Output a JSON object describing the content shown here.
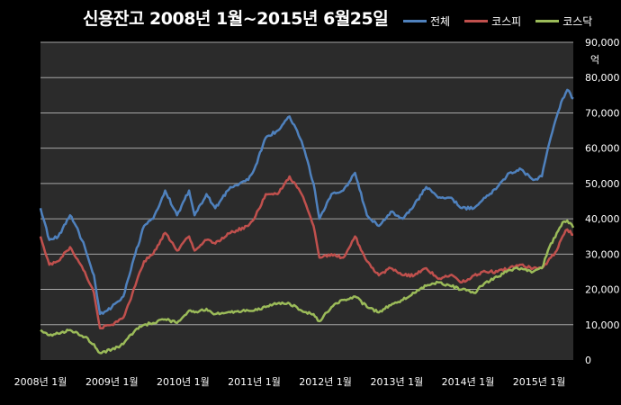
{
  "chart_data": {
    "type": "line",
    "title": "신용잔고 2008년 1월~2015년 6월25일",
    "ylabel": "억",
    "ylim": [
      0,
      90000
    ],
    "yticks": [
      0,
      10000,
      20000,
      30000,
      40000,
      50000,
      60000,
      70000,
      80000,
      90000
    ],
    "ytick_labels": [
      "0",
      "10,000",
      "20,000",
      "30,000",
      "40,000",
      "50,000",
      "60,000",
      "70,000",
      "80,000",
      "90,000"
    ],
    "xlim": [
      "2008-01-01",
      "2015-06-25"
    ],
    "xticks": [
      "2008-01-01",
      "2009-01-01",
      "2010-01-01",
      "2011-01-01",
      "2012-01-01",
      "2013-01-01",
      "2014-01-01",
      "2015-01-01"
    ],
    "xtick_labels": [
      "2008년 1월",
      "2009년 1월",
      "2010년 1월",
      "2011년 1월",
      "2012년 1월",
      "2013년 1월",
      "2014년 1월",
      "2015년 1월"
    ],
    "grid": true,
    "legend_position": "top-right",
    "series": [
      {
        "name": "전체",
        "color": "#4f81bd",
        "points": [
          [
            "2008-01-01",
            43000
          ],
          [
            "2008-02-15",
            34000
          ],
          [
            "2008-04-01",
            35000
          ],
          [
            "2008-06-01",
            41000
          ],
          [
            "2008-07-01",
            38000
          ],
          [
            "2008-08-15",
            32000
          ],
          [
            "2008-10-01",
            24000
          ],
          [
            "2008-11-01",
            13000
          ],
          [
            "2009-01-01",
            15000
          ],
          [
            "2009-03-01",
            18000
          ],
          [
            "2009-05-01",
            30000
          ],
          [
            "2009-06-15",
            38000
          ],
          [
            "2009-08-01",
            40000
          ],
          [
            "2009-10-01",
            48000
          ],
          [
            "2009-12-01",
            41000
          ],
          [
            "2010-02-01",
            48000
          ],
          [
            "2010-03-01",
            41000
          ],
          [
            "2010-05-01",
            47000
          ],
          [
            "2010-06-15",
            43000
          ],
          [
            "2010-09-01",
            49000
          ],
          [
            "2010-12-01",
            51000
          ],
          [
            "2011-01-01",
            54000
          ],
          [
            "2011-03-01",
            63000
          ],
          [
            "2011-05-01",
            65000
          ],
          [
            "2011-07-01",
            69000
          ],
          [
            "2011-09-01",
            62000
          ],
          [
            "2011-11-01",
            50000
          ],
          [
            "2011-12-01",
            40000
          ],
          [
            "2012-02-01",
            47000
          ],
          [
            "2012-04-01",
            48000
          ],
          [
            "2012-06-01",
            53000
          ],
          [
            "2012-08-01",
            41000
          ],
          [
            "2012-10-01",
            38000
          ],
          [
            "2012-12-01",
            42000
          ],
          [
            "2013-02-01",
            40000
          ],
          [
            "2013-04-01",
            44000
          ],
          [
            "2013-06-01",
            49000
          ],
          [
            "2013-08-01",
            46000
          ],
          [
            "2013-10-01",
            46000
          ],
          [
            "2013-12-01",
            43000
          ],
          [
            "2014-02-01",
            43000
          ],
          [
            "2014-04-01",
            46000
          ],
          [
            "2014-06-01",
            49000
          ],
          [
            "2014-08-01",
            53000
          ],
          [
            "2014-10-01",
            54000
          ],
          [
            "2014-12-01",
            51000
          ],
          [
            "2015-01-15",
            52000
          ],
          [
            "2015-02-15",
            60000
          ],
          [
            "2015-04-01",
            69000
          ],
          [
            "2015-05-01",
            74000
          ],
          [
            "2015-05-25",
            76500
          ],
          [
            "2015-06-25",
            74000
          ]
        ]
      },
      {
        "name": "코스피",
        "color": "#c0504d",
        "points": [
          [
            "2008-01-01",
            35000
          ],
          [
            "2008-02-15",
            27000
          ],
          [
            "2008-04-01",
            28000
          ],
          [
            "2008-06-01",
            32000
          ],
          [
            "2008-07-01",
            29000
          ],
          [
            "2008-08-15",
            25000
          ],
          [
            "2008-10-01",
            19000
          ],
          [
            "2008-11-01",
            9000
          ],
          [
            "2009-01-01",
            10000
          ],
          [
            "2009-03-01",
            12000
          ],
          [
            "2009-05-01",
            21000
          ],
          [
            "2009-06-15",
            28000
          ],
          [
            "2009-08-01",
            30000
          ],
          [
            "2009-10-01",
            36000
          ],
          [
            "2009-12-01",
            31000
          ],
          [
            "2010-02-01",
            35000
          ],
          [
            "2010-03-01",
            31000
          ],
          [
            "2010-05-01",
            34000
          ],
          [
            "2010-06-15",
            33000
          ],
          [
            "2010-09-01",
            36000
          ],
          [
            "2010-12-01",
            38000
          ],
          [
            "2011-01-01",
            40000
          ],
          [
            "2011-03-01",
            47000
          ],
          [
            "2011-05-01",
            47000
          ],
          [
            "2011-07-01",
            52000
          ],
          [
            "2011-09-01",
            47000
          ],
          [
            "2011-11-01",
            38000
          ],
          [
            "2011-12-01",
            29000
          ],
          [
            "2012-02-01",
            30000
          ],
          [
            "2012-04-01",
            29000
          ],
          [
            "2012-06-01",
            35000
          ],
          [
            "2012-08-01",
            28000
          ],
          [
            "2012-10-01",
            24000
          ],
          [
            "2012-12-01",
            26000
          ],
          [
            "2013-02-01",
            24000
          ],
          [
            "2013-04-01",
            24000
          ],
          [
            "2013-06-01",
            26000
          ],
          [
            "2013-08-01",
            23000
          ],
          [
            "2013-10-01",
            24000
          ],
          [
            "2013-12-01",
            22000
          ],
          [
            "2014-02-01",
            24000
          ],
          [
            "2014-04-01",
            25000
          ],
          [
            "2014-06-01",
            25000
          ],
          [
            "2014-08-01",
            26000
          ],
          [
            "2014-10-01",
            27000
          ],
          [
            "2014-12-01",
            26000
          ],
          [
            "2015-01-15",
            26000
          ],
          [
            "2015-02-15",
            28000
          ],
          [
            "2015-04-01",
            31000
          ],
          [
            "2015-05-01",
            35000
          ],
          [
            "2015-05-25",
            37000
          ],
          [
            "2015-06-25",
            35500
          ]
        ]
      },
      {
        "name": "코스닥",
        "color": "#9bbb59",
        "points": [
          [
            "2008-01-01",
            8500
          ],
          [
            "2008-02-15",
            7000
          ],
          [
            "2008-04-01",
            7500
          ],
          [
            "2008-06-01",
            8500
          ],
          [
            "2008-07-01",
            8000
          ],
          [
            "2008-08-15",
            6500
          ],
          [
            "2008-10-01",
            4500
          ],
          [
            "2008-11-01",
            2000
          ],
          [
            "2009-01-01",
            3000
          ],
          [
            "2009-03-01",
            4500
          ],
          [
            "2009-05-01",
            8500
          ],
          [
            "2009-06-15",
            10000
          ],
          [
            "2009-08-01",
            10500
          ],
          [
            "2009-10-01",
            11500
          ],
          [
            "2009-12-01",
            10500
          ],
          [
            "2010-02-01",
            14000
          ],
          [
            "2010-03-01",
            13500
          ],
          [
            "2010-05-01",
            14500
          ],
          [
            "2010-06-15",
            13000
          ],
          [
            "2010-09-01",
            13500
          ],
          [
            "2010-12-01",
            14000
          ],
          [
            "2011-01-01",
            14000
          ],
          [
            "2011-03-01",
            15000
          ],
          [
            "2011-05-01",
            16000
          ],
          [
            "2011-07-01",
            16000
          ],
          [
            "2011-09-01",
            14000
          ],
          [
            "2011-11-01",
            13000
          ],
          [
            "2011-12-01",
            11000
          ],
          [
            "2012-02-01",
            15000
          ],
          [
            "2012-04-01",
            17000
          ],
          [
            "2012-06-01",
            18000
          ],
          [
            "2012-08-01",
            15000
          ],
          [
            "2012-10-01",
            13500
          ],
          [
            "2012-12-01",
            15500
          ],
          [
            "2013-02-01",
            17000
          ],
          [
            "2013-04-01",
            19000
          ],
          [
            "2013-06-01",
            21000
          ],
          [
            "2013-08-01",
            22000
          ],
          [
            "2013-10-01",
            21000
          ],
          [
            "2013-12-01",
            20000
          ],
          [
            "2014-02-01",
            19000
          ],
          [
            "2014-04-01",
            22000
          ],
          [
            "2014-06-01",
            23500
          ],
          [
            "2014-08-01",
            25500
          ],
          [
            "2014-10-01",
            26000
          ],
          [
            "2014-12-01",
            25000
          ],
          [
            "2015-01-15",
            26000
          ],
          [
            "2015-02-15",
            31000
          ],
          [
            "2015-04-01",
            36000
          ],
          [
            "2015-05-01",
            39000
          ],
          [
            "2015-05-25",
            39500
          ],
          [
            "2015-06-25",
            37500
          ]
        ]
      }
    ]
  }
}
